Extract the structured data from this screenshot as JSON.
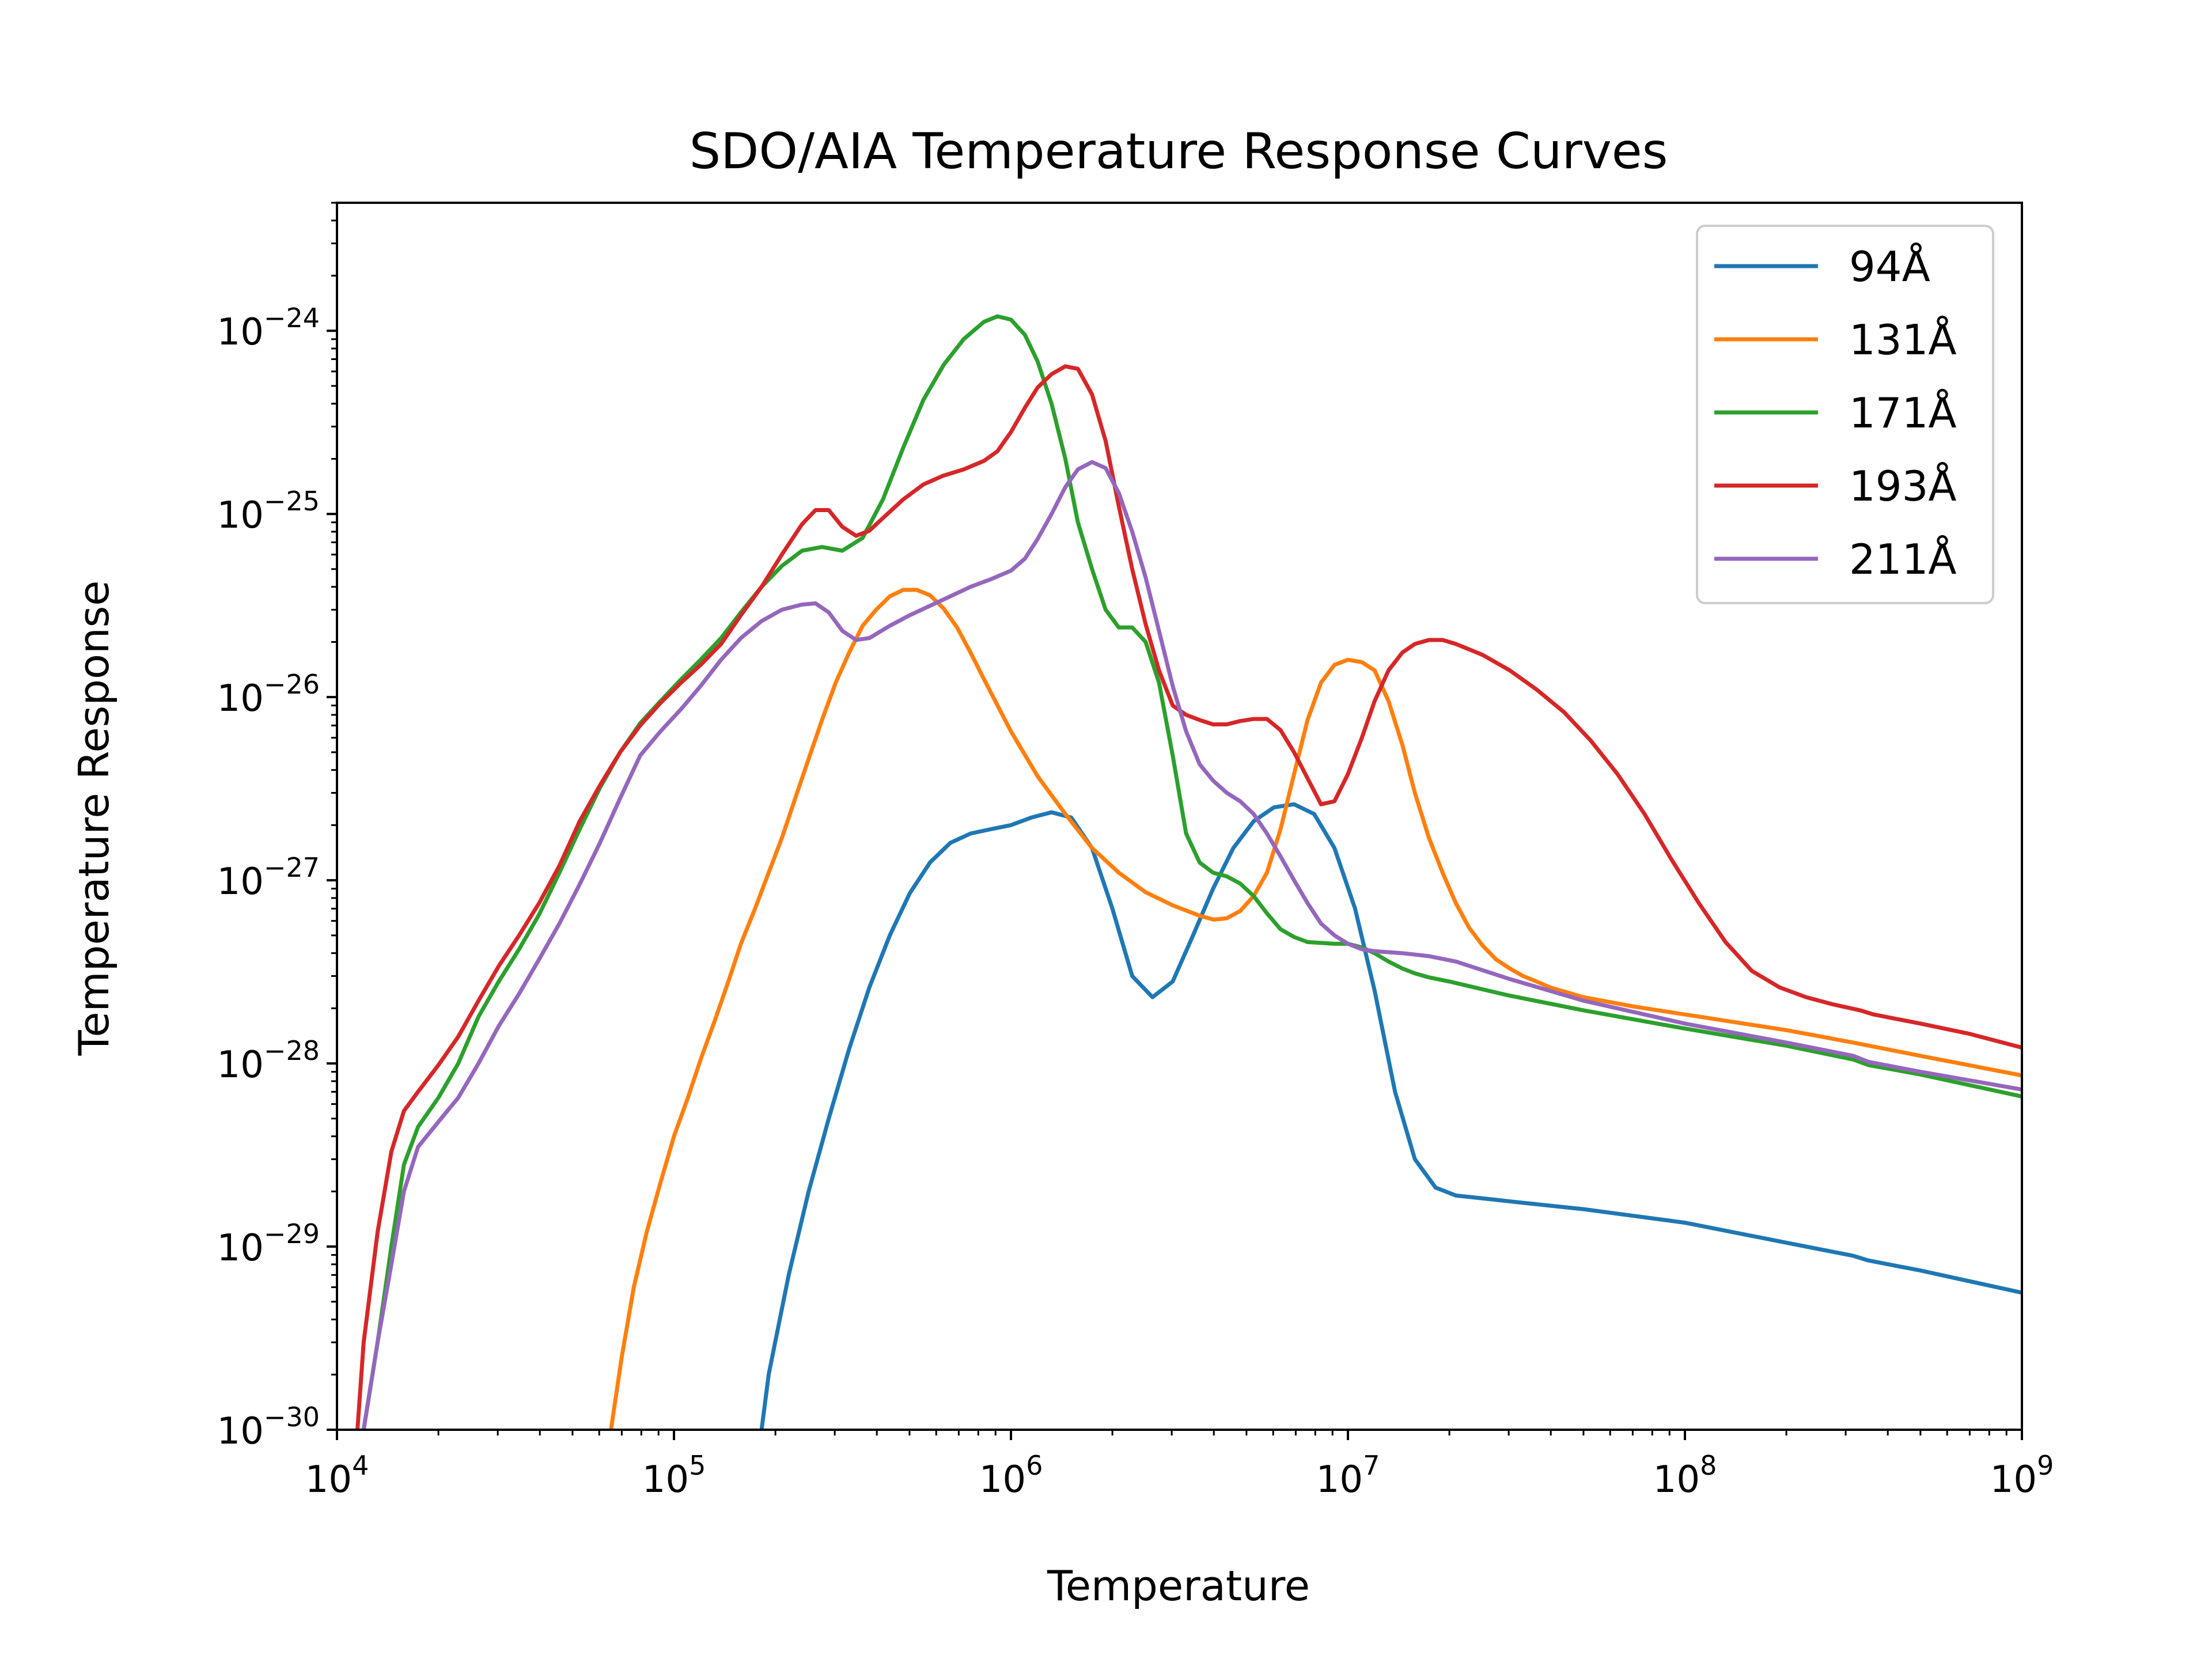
{
  "chart_data": {
    "type": "line",
    "title": "SDO/AIA Temperature Response Curves",
    "xlabel": "Temperature",
    "ylabel": "Temperature Response",
    "xscale": "log",
    "yscale": "log",
    "xlim": [
      10000,
      1000000000
    ],
    "ylim": [
      1e-30,
      5e-24
    ],
    "grid": false,
    "legend_position": "top-right",
    "x_ticks": [
      {
        "base": "10",
        "exp": "4",
        "value": 10000.0
      },
      {
        "base": "10",
        "exp": "5",
        "value": 100000.0
      },
      {
        "base": "10",
        "exp": "6",
        "value": 1000000.0
      },
      {
        "base": "10",
        "exp": "7",
        "value": 10000000.0
      },
      {
        "base": "10",
        "exp": "8",
        "value": 100000000.0
      },
      {
        "base": "10",
        "exp": "9",
        "value": 1000000000.0
      }
    ],
    "y_ticks": [
      {
        "base": "10",
        "exp": "−30",
        "value": 1e-30
      },
      {
        "base": "10",
        "exp": "−29",
        "value": 1e-29
      },
      {
        "base": "10",
        "exp": "−28",
        "value": 1e-28
      },
      {
        "base": "10",
        "exp": "−27",
        "value": 1e-27
      },
      {
        "base": "10",
        "exp": "−26",
        "value": 1e-26
      },
      {
        "base": "10",
        "exp": "−25",
        "value": 1e-25
      },
      {
        "base": "10",
        "exp": "−24",
        "value": 1e-24
      }
    ],
    "series": [
      {
        "name": "94Å",
        "color": "#1f77b4",
        "x": [
          182000.0,
          191000.0,
          219000.0,
          251000.0,
          288000.0,
          331000.0,
          380000.0,
          437000.0,
          501000.0,
          575000.0,
          661000.0,
          759000.0,
          871000.0,
          1000000.0,
          1150000.0,
          1320000.0,
          1510000.0,
          1740000.0,
          2000000.0,
          2290000.0,
          2630000.0,
          3020000.0,
          3470000.0,
          3980000.0,
          4570000.0,
          5250000.0,
          6030000.0,
          6920000.0,
          7940000.0,
          9120000.0,
          10500000.0,
          12000000.0,
          13800000.0,
          15800000.0,
          18200000.0,
          20900000.0,
          24000000.0,
          27500000.0,
          31600000.0,
          50000000.0,
          100000000.0,
          200000000.0,
          316000000.0,
          350000000.0,
          500000000.0,
          1000000000.0
        ],
        "values": [
          1e-30,
          2e-30,
          7e-30,
          2e-29,
          5e-29,
          1.2e-28,
          2.6e-28,
          5e-28,
          8.5e-28,
          1.25e-27,
          1.6e-27,
          1.8e-27,
          1.9e-27,
          2e-27,
          2.2e-27,
          2.35e-27,
          2.2e-27,
          1.5e-27,
          7e-28,
          3e-28,
          2.3e-28,
          2.8e-28,
          5e-28,
          9e-28,
          1.5e-27,
          2.1e-27,
          2.5e-27,
          2.6e-27,
          2.3e-27,
          1.5e-27,
          7e-28,
          2.5e-28,
          7e-29,
          3e-29,
          2.1e-29,
          1.9e-29,
          1.85e-29,
          1.8e-29,
          1.75e-29,
          1.6e-29,
          1.35e-29,
          1.05e-29,
          8.9e-30,
          8.4e-30,
          7.4e-30,
          5.6e-30
        ]
      },
      {
        "name": "131Å",
        "color": "#ff7f0e",
        "x": [
          65000.0,
          70000.0,
          76000.0,
          83000.0,
          91000.0,
          100000.0,
          110000.0,
          120000.0,
          132000.0,
          145000.0,
          158000.0,
          174000.0,
          191000.0,
          209000.0,
          229000.0,
          251000.0,
          275000.0,
          302000.0,
          331000.0,
          363000.0,
          398000.0,
          437000.0,
          479000.0,
          525000.0,
          575000.0,
          631000.0,
          692000.0,
          759000.0,
          832000.0,
          1000000.0,
          1200000.0,
          1450000.0,
          1740000.0,
          2090000.0,
          2510000.0,
          3020000.0,
          3630000.0,
          4000000.0,
          4370000.0,
          4790000.0,
          5250000.0,
          5750000.0,
          6310000.0,
          6920000.0,
          7590000.0,
          8320000.0,
          9120000.0,
          10000000.0,
          11000000.0,
          12000000.0,
          13200000.0,
          14500000.0,
          15800000.0,
          17400000.0,
          19100000.0,
          20900000.0,
          22900000.0,
          25100000.0,
          27500000.0,
          30200000.0,
          33100000.0,
          36300000.0,
          39800000.0,
          50000000.0,
          70000000.0,
          100000000.0,
          200000000.0,
          316000000.0,
          500000000.0,
          1000000000.0
        ],
        "values": [
          1e-30,
          2.5e-30,
          6e-30,
          1.2e-29,
          2.2e-29,
          4e-29,
          6.5e-29,
          1.05e-28,
          1.7e-28,
          2.8e-28,
          4.5e-28,
          7e-28,
          1.1e-27,
          1.7e-27,
          2.8e-27,
          4.6e-27,
          7.5e-27,
          1.2e-26,
          1.75e-26,
          2.45e-26,
          3e-26,
          3.55e-26,
          3.85e-26,
          3.85e-26,
          3.6e-26,
          3.05e-26,
          2.4e-26,
          1.75e-26,
          1.25e-26,
          6.5e-27,
          3.7e-27,
          2.3e-27,
          1.5e-27,
          1.1e-27,
          8.6e-28,
          7.3e-28,
          6.4e-28,
          6.1e-28,
          6.2e-28,
          6.8e-28,
          8.2e-28,
          1.1e-27,
          1.9e-27,
          3.8e-27,
          7.5e-27,
          1.2e-26,
          1.5e-26,
          1.6e-26,
          1.55e-26,
          1.4e-26,
          9.5e-27,
          5.5e-27,
          3e-27,
          1.7e-27,
          1.1e-27,
          7.5e-28,
          5.5e-28,
          4.4e-28,
          3.7e-28,
          3.3e-28,
          3e-28,
          2.8e-28,
          2.6e-28,
          2.3e-28,
          2.05e-28,
          1.85e-28,
          1.52e-28,
          1.3e-28,
          1.1e-28,
          8.6e-29
        ]
      },
      {
        "name": "171Å",
        "color": "#2ca02c",
        "x": [
          12000.0,
          13200.0,
          14500.0,
          15800.0,
          17400.0,
          20000.0,
          22900.0,
          26300.0,
          30200.0,
          34700.0,
          39800.0,
          45700.0,
          52500.0,
          60300.0,
          69200.0,
          79400.0,
          91200.0,
          105000.0,
          120000.0,
          138000.0,
          158000.0,
          182000.0,
          209000.0,
          240000.0,
          275000.0,
          316000.0,
          363000.0,
          417000.0,
          479000.0,
          550000.0,
          631000.0,
          724000.0,
          832000.0,
          912000.0,
          1000000.0,
          1100000.0,
          1200000.0,
          1320000.0,
          1450000.0,
          1580000.0,
          1740000.0,
          1910000.0,
          2090000.0,
          2290000.0,
          2510000.0,
          2750000.0,
          3020000.0,
          3310000.0,
          3630000.0,
          3980000.0,
          4370000.0,
          4790000.0,
          5250000.0,
          5750000.0,
          6310000.0,
          6920000.0,
          7590000.0,
          8320000.0,
          9120000.0,
          10000000.0,
          11000000.0,
          12000000.0,
          13200000.0,
          14500000.0,
          15800000.0,
          17400000.0,
          20000000.0,
          30000000.0,
          50000000.0,
          100000000.0,
          200000000.0,
          316000000.0,
          350000000.0,
          500000000.0,
          1000000000.0
        ],
        "values": [
          1e-30,
          3e-30,
          1e-29,
          2.8e-29,
          4.5e-29,
          6.5e-29,
          1e-28,
          1.8e-28,
          2.8e-28,
          4.2e-28,
          6.5e-28,
          1.1e-27,
          1.9e-27,
          3.2e-27,
          5e-27,
          7.2e-27,
          9.5e-27,
          1.25e-26,
          1.6e-26,
          2.1e-26,
          2.9e-26,
          4e-26,
          5.2e-26,
          6.3e-26,
          6.6e-26,
          6.3e-26,
          7.4e-26,
          1.2e-25,
          2.3e-25,
          4.2e-25,
          6.5e-25,
          9e-25,
          1.12e-24,
          1.2e-24,
          1.15e-24,
          9.5e-25,
          6.8e-25,
          4e-25,
          2e-25,
          9e-26,
          5e-26,
          3e-26,
          2.4e-26,
          2.4e-26,
          2e-26,
          1.2e-26,
          4.8e-27,
          1.8e-27,
          1.25e-27,
          1.1e-27,
          1.05e-27,
          9.6e-28,
          8.2e-28,
          6.6e-28,
          5.4e-28,
          4.9e-28,
          4.6e-28,
          4.55e-28,
          4.5e-28,
          4.5e-28,
          4.3e-28,
          4e-28,
          3.6e-28,
          3.3e-28,
          3.1e-28,
          2.95e-28,
          2.8e-28,
          2.35e-28,
          1.95e-28,
          1.55e-28,
          1.25e-28,
          1.05e-28,
          9.8e-29,
          8.7e-29,
          6.6e-29
        ]
      },
      {
        "name": "193Å",
        "color": "#d62728",
        "x": [
          11500.0,
          12000.0,
          13200.0,
          14500.0,
          15800.0,
          17400.0,
          20000.0,
          22900.0,
          26300.0,
          30200.0,
          34700.0,
          39800.0,
          45700.0,
          52500.0,
          60300.0,
          69200.0,
          79400.0,
          91200.0,
          105000.0,
          120000.0,
          138000.0,
          158000.0,
          182000.0,
          209000.0,
          240000.0,
          263000.0,
          288000.0,
          316000.0,
          347000.0,
          380000.0,
          417000.0,
          479000.0,
          550000.0,
          631000.0,
          724000.0,
          832000.0,
          912000.0,
          1000000.0,
          1100000.0,
          1200000.0,
          1320000.0,
          1450000.0,
          1580000.0,
          1740000.0,
          1910000.0,
          2090000.0,
          2290000.0,
          2510000.0,
          2750000.0,
          3020000.0,
          3310000.0,
          3630000.0,
          3980000.0,
          4370000.0,
          4790000.0,
          5250000.0,
          5750000.0,
          6310000.0,
          6920000.0,
          7590000.0,
          8320000.0,
          9120000.0,
          10000000.0,
          11000000.0,
          12000000.0,
          13200000.0,
          14500000.0,
          15800000.0,
          17400000.0,
          19100000.0,
          20900000.0,
          25100000.0,
          30200000.0,
          36300000.0,
          43700000.0,
          52500000.0,
          63100000.0,
          75900000.0,
          91200000.0,
          110000000.0,
          132000000.0,
          158000000.0,
          191000000.0,
          229000000.0,
          275000000.0,
          331000000.0,
          363000000.0,
          500000000.0,
          700000000.0,
          1000000000.0
        ],
        "values": [
          1e-30,
          3e-30,
          1.2e-29,
          3.3e-29,
          5.5e-29,
          7e-29,
          9.8e-29,
          1.4e-28,
          2.2e-28,
          3.4e-28,
          5e-28,
          7.5e-28,
          1.2e-27,
          2.1e-27,
          3.3e-27,
          5e-27,
          7e-27,
          9.3e-27,
          1.2e-26,
          1.5e-26,
          1.95e-26,
          2.8e-26,
          4e-26,
          6e-26,
          8.8e-26,
          1.05e-25,
          1.05e-25,
          8.5e-26,
          7.6e-26,
          8.1e-26,
          9.5e-26,
          1.2e-25,
          1.45e-25,
          1.62e-25,
          1.75e-25,
          1.95e-25,
          2.2e-25,
          2.8e-25,
          3.8e-25,
          4.9e-25,
          5.8e-25,
          6.4e-25,
          6.2e-25,
          4.5e-25,
          2.5e-25,
          1.1e-25,
          5e-26,
          2.5e-26,
          1.4e-26,
          9e-27,
          8e-27,
          7.5e-27,
          7.1e-27,
          7.1e-27,
          7.4e-27,
          7.6e-27,
          7.6e-27,
          6.6e-27,
          5e-27,
          3.6e-27,
          2.6e-27,
          2.7e-27,
          3.8e-27,
          6e-27,
          9.5e-27,
          1.4e-26,
          1.75e-26,
          1.95e-26,
          2.05e-26,
          2.05e-26,
          1.95e-26,
          1.7e-26,
          1.4e-26,
          1.1e-26,
          8.3e-27,
          5.8e-27,
          3.8e-27,
          2.3e-27,
          1.3e-27,
          7.5e-28,
          4.6e-28,
          3.2e-28,
          2.6e-28,
          2.3e-28,
          2.1e-28,
          1.95e-28,
          1.85e-28,
          1.65e-28,
          1.45e-28,
          1.22e-28
        ]
      },
      {
        "name": "211Å",
        "color": "#9467bd",
        "x": [
          12000.0,
          13200.0,
          14500.0,
          15800.0,
          17400.0,
          20000.0,
          22900.0,
          26300.0,
          30200.0,
          34700.0,
          39800.0,
          45700.0,
          52500.0,
          60300.0,
          69200.0,
          79400.0,
          91200.0,
          105000.0,
          120000.0,
          138000.0,
          158000.0,
          182000.0,
          209000.0,
          240000.0,
          263000.0,
          288000.0,
          316000.0,
          347000.0,
          380000.0,
          437000.0,
          501000.0,
          575000.0,
          661000.0,
          759000.0,
          871000.0,
          1000000.0,
          1100000.0,
          1200000.0,
          1320000.0,
          1450000.0,
          1580000.0,
          1740000.0,
          1910000.0,
          2090000.0,
          2290000.0,
          2510000.0,
          2750000.0,
          3020000.0,
          3310000.0,
          3630000.0,
          3980000.0,
          4370000.0,
          4790000.0,
          5250000.0,
          5750000.0,
          6310000.0,
          6920000.0,
          7590000.0,
          8320000.0,
          9120000.0,
          10000000.0,
          11000000.0,
          12000000.0,
          14500000.0,
          17400000.0,
          20900000.0,
          30000000.0,
          50000000.0,
          100000000.0,
          200000000.0,
          316000000.0,
          350000000.0,
          500000000.0,
          1000000000.0
        ],
        "values": [
          1e-30,
          3e-30,
          8e-30,
          2e-29,
          3.5e-29,
          4.8e-29,
          6.5e-29,
          1e-28,
          1.6e-28,
          2.4e-28,
          3.7e-28,
          5.8e-28,
          9.5e-28,
          1.6e-27,
          2.8e-27,
          4.8e-27,
          6.5e-27,
          8.6e-27,
          1.15e-26,
          1.6e-26,
          2.1e-26,
          2.6e-26,
          3e-26,
          3.2e-26,
          3.25e-26,
          2.9e-26,
          2.3e-26,
          2.05e-26,
          2.1e-26,
          2.45e-26,
          2.8e-26,
          3.15e-26,
          3.55e-26,
          4e-26,
          4.4e-26,
          4.9e-26,
          5.7e-26,
          7.3e-26,
          1e-25,
          1.4e-25,
          1.75e-25,
          1.92e-25,
          1.78e-25,
          1.3e-25,
          8e-26,
          4.5e-26,
          2.3e-26,
          1.15e-26,
          6.5e-27,
          4.3e-27,
          3.5e-27,
          3e-27,
          2.7e-27,
          2.3e-27,
          1.8e-27,
          1.35e-27,
          1e-27,
          7.5e-28,
          5.8e-28,
          5e-28,
          4.5e-28,
          4.2e-28,
          4.1e-28,
          4e-28,
          3.85e-28,
          3.6e-28,
          2.9e-28,
          2.2e-28,
          1.65e-28,
          1.3e-28,
          1.1e-28,
          1.02e-28,
          9e-29,
          7.2e-29
        ]
      }
    ]
  }
}
